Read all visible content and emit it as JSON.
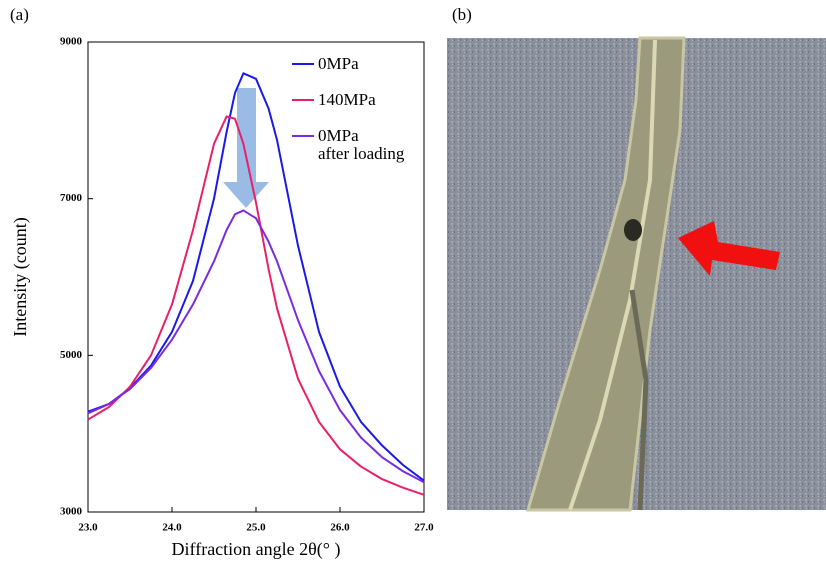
{
  "panel_labels": [
    "(a)",
    "(b)"
  ],
  "chart_data": {
    "type": "line",
    "xlabel": "Diffraction angle 2θ(° )",
    "ylabel": "Intensity (count)",
    "x": [
      23,
      23.25,
      23.5,
      23.75,
      24,
      24.25,
      24.5,
      24.65,
      24.75,
      24.85,
      25,
      25.15,
      25.25,
      25.5,
      25.75,
      26,
      26.25,
      26.5,
      26.75,
      27
    ],
    "series": [
      {
        "name": "0MPa",
        "color": "#1a1ae6",
        "values": [
          4280,
          4380,
          4580,
          4870,
          5300,
          5950,
          7000,
          7850,
          8350,
          8600,
          8530,
          8150,
          7750,
          6400,
          5300,
          4600,
          4150,
          3850,
          3600,
          3400
        ]
      },
      {
        "name": "140MPa",
        "color": "#e8206a",
        "values": [
          4180,
          4340,
          4600,
          5000,
          5650,
          6600,
          7700,
          8050,
          8020,
          7700,
          6950,
          6100,
          5600,
          4700,
          4150,
          3800,
          3580,
          3420,
          3310,
          3220
        ]
      },
      {
        "name": "0MPa\nafter loading",
        "color": "#7a2be0",
        "values": [
          4260,
          4380,
          4570,
          4840,
          5200,
          5650,
          6200,
          6600,
          6800,
          6850,
          6750,
          6450,
          6200,
          5450,
          4800,
          4300,
          3950,
          3700,
          3520,
          3380
        ]
      }
    ],
    "xlim": [
      23,
      27
    ],
    "xticks": [
      {
        "value": 23,
        "label": "23.0"
      },
      {
        "value": 24,
        "label": "24.0"
      },
      {
        "value": 25,
        "label": "25.0"
      },
      {
        "value": 26,
        "label": "26.0"
      },
      {
        "value": 27,
        "label": "27.0"
      }
    ],
    "ylim": [
      3000,
      9000
    ],
    "yticks": [
      3000,
      5000,
      7000,
      9000
    ]
  }
}
